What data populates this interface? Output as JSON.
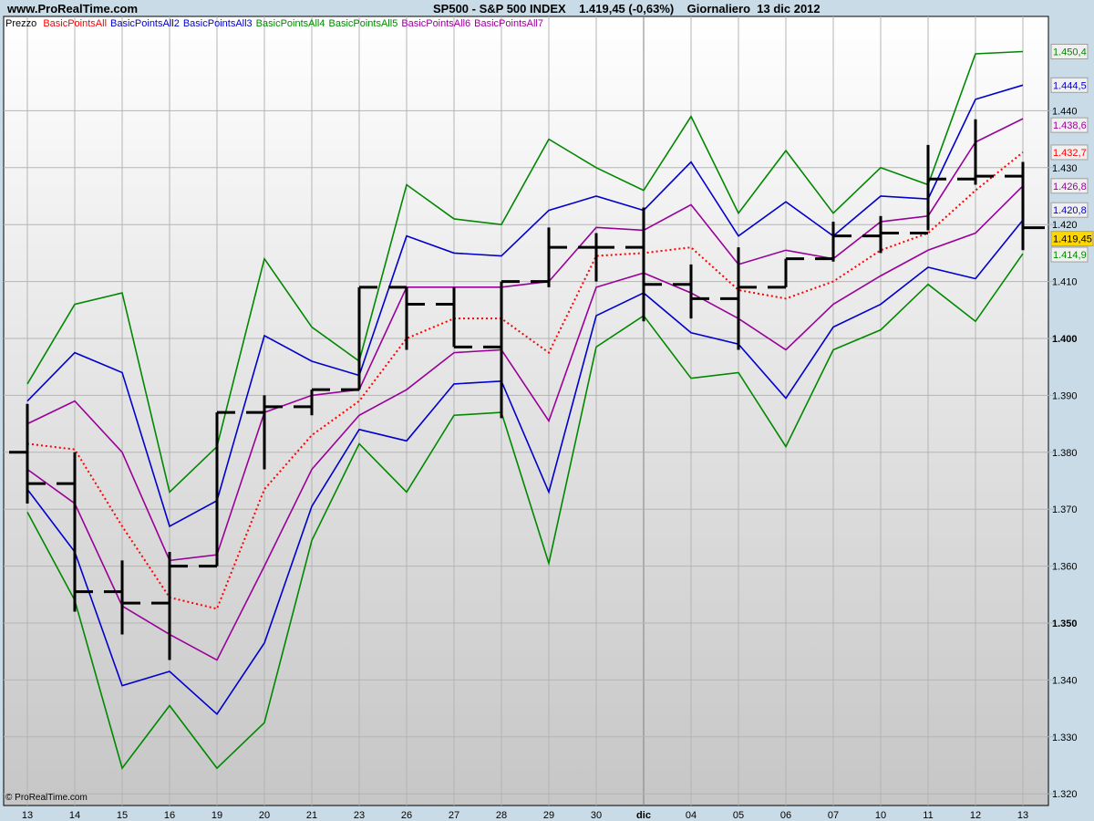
{
  "header": {
    "site": "www.ProRealTime.com",
    "title": "SP500 - S&P 500 INDEX    1.419,45 (-0,63%)    Giornaliero  13 dic 2012"
  },
  "copyright": "© ProRealTime.com",
  "chart_data": {
    "type": "line",
    "title": "SP500 - S&P 500 INDEX",
    "x": [
      "13",
      "14",
      "15",
      "16",
      "19",
      "20",
      "21",
      "23",
      "26",
      "27",
      "28",
      "29",
      "30",
      "dic",
      "04",
      "05",
      "06",
      "07",
      "10",
      "11",
      "12",
      "13"
    ],
    "ylim": [
      1318,
      1457
    ],
    "yticks": [
      "1.320",
      "1.330",
      "1.340",
      "1.350",
      "1.360",
      "1.370",
      "1.380",
      "1.390",
      "1.400",
      "1.410",
      "1.420",
      "1.430",
      "1.440"
    ],
    "ytick_values": [
      1320,
      1330,
      1340,
      1350,
      1360,
      1370,
      1380,
      1390,
      1400,
      1410,
      1420,
      1430,
      1440
    ],
    "grid": true,
    "price": {
      "name": "Prezzo",
      "high": [
        1388.5,
        1380,
        1361,
        1362.5,
        1387,
        1390,
        1391,
        1409,
        1409,
        1409,
        1410,
        1419.5,
        1418.5,
        1423,
        1413,
        1416,
        1414,
        1420.5,
        1421.5,
        1434,
        1438.5,
        1431
      ],
      "low": [
        1371,
        1352,
        1348,
        1343.5,
        1360,
        1377,
        1386.5,
        1391,
        1398,
        1398.5,
        1386,
        1409,
        1410,
        1403,
        1403.5,
        1398,
        1409,
        1413.5,
        1415,
        1419,
        1427,
        1415.5
      ],
      "close": [
        1374.5,
        1355.5,
        1353.5,
        1360,
        1387,
        1388,
        1391,
        1409,
        1406,
        1398.5,
        1410,
        1416,
        1416,
        1409.5,
        1407,
        1409,
        1414,
        1418,
        1418.5,
        1428,
        1428.5,
        1419.45
      ],
      "last_label": "1.419,45",
      "last_color": "#ffd700"
    },
    "series": [
      {
        "name": "BasicPointsAll",
        "color": "#ff0000",
        "dotted": true,
        "last_label": "1.432,7",
        "values": [
          1381.5,
          1380.5,
          1367,
          1354.5,
          1352.5,
          1373.5,
          1383,
          1389,
          1400,
          1403.5,
          1403.5,
          1397.5,
          1414.5,
          1415,
          1416,
          1408.5,
          1407,
          1410,
          1415.5,
          1418.5,
          1426,
          1432.7
        ]
      },
      {
        "name": "BasicPointsAll2",
        "color": "#0000cc",
        "last_label": "1.444,5",
        "values": [
          1389,
          1397.5,
          1394,
          1367,
          1371.5,
          1400.5,
          1396,
          1393.5,
          1418,
          1415,
          1414.5,
          1422.5,
          1425,
          1422.5,
          1431,
          1418,
          1424,
          1418,
          1425,
          1424.5,
          1442,
          1444.5
        ]
      },
      {
        "name": "BasicPointsAll3",
        "color": "#0000cc",
        "last_label": "1.420,8",
        "values": [
          1373.5,
          1362.5,
          1339,
          1341.5,
          1334,
          1346.5,
          1370.5,
          1384,
          1382,
          1392,
          1392.5,
          1373,
          1404,
          1408,
          1401,
          1399,
          1389.5,
          1402,
          1406,
          1412.5,
          1410.5,
          1420.8
        ]
      },
      {
        "name": "BasicPointsAll4",
        "color": "#008800",
        "last_label": "1.450,4",
        "values": [
          1392,
          1406,
          1408,
          1373,
          1381,
          1414,
          1402,
          1396,
          1427,
          1421,
          1420,
          1435,
          1430,
          1426,
          1439,
          1422,
          1433,
          1422,
          1430,
          1427,
          1450,
          1450.4
        ]
      },
      {
        "name": "BasicPointsAll5",
        "color": "#008800",
        "last_label": "1.414,9",
        "values": [
          1369.5,
          1354,
          1324.5,
          1335.5,
          1324.5,
          1332.5,
          1364.5,
          1381.5,
          1373,
          1386.5,
          1387,
          1360.5,
          1398.5,
          1404,
          1393,
          1394,
          1381,
          1398,
          1401.5,
          1409.5,
          1403,
          1414.9
        ]
      },
      {
        "name": "BasicPointsAll6",
        "color": "#990099",
        "last_label": "1.438,6",
        "values": [
          1385,
          1389,
          1380,
          1361,
          1362,
          1387,
          1390,
          1391,
          1409,
          1409,
          1409,
          1410,
          1419.5,
          1419,
          1423.5,
          1413,
          1415.5,
          1414,
          1420.5,
          1421.5,
          1434.5,
          1438.6
        ]
      },
      {
        "name": "BasicPointsAll7",
        "color": "#990099",
        "last_label": "1.426,8",
        "values": [
          1377,
          1371,
          1353,
          1348,
          1343.5,
          1360,
          1377,
          1386.5,
          1391,
          1397.5,
          1398,
          1385.5,
          1409,
          1411.5,
          1408,
          1403.5,
          1398,
          1406,
          1411,
          1415.5,
          1418.5,
          1426.8
        ]
      }
    ]
  }
}
